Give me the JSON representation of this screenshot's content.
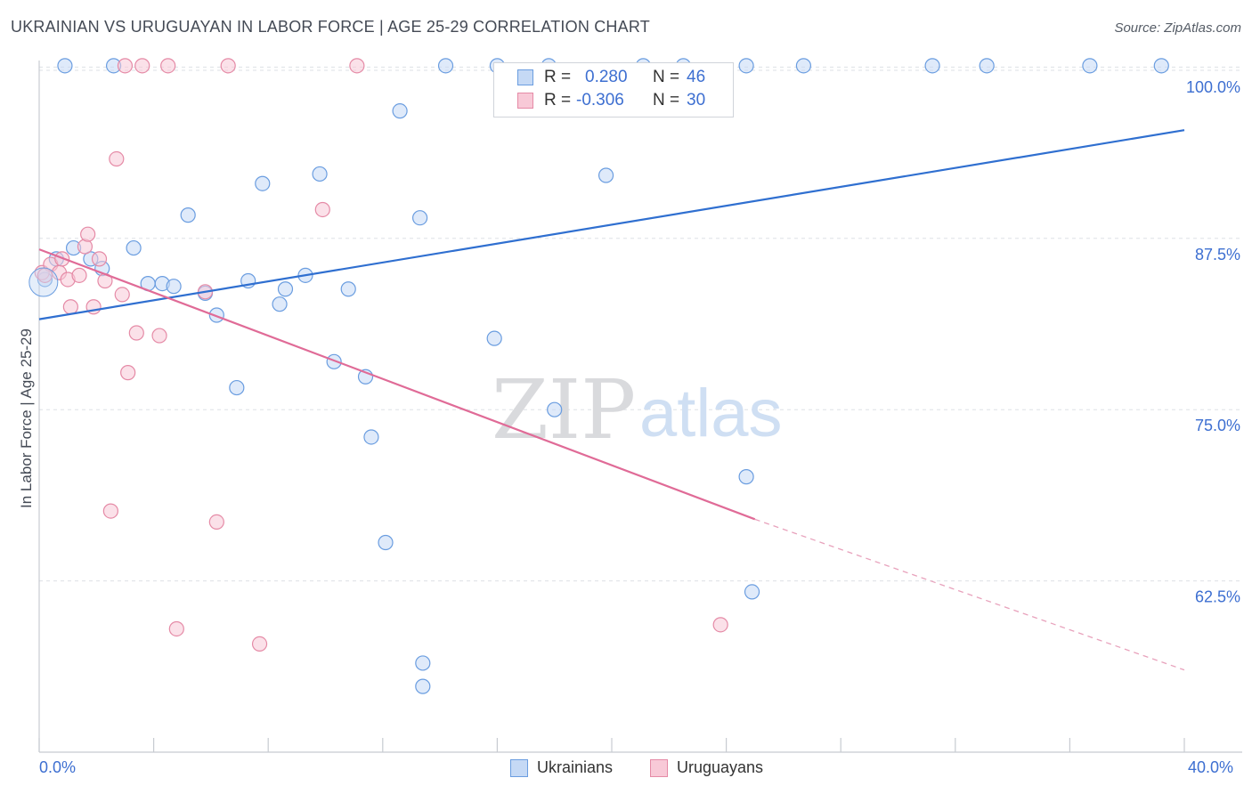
{
  "chart_data": {
    "type": "scatter",
    "title": "UKRAINIAN VS URUGUAYAN IN LABOR FORCE | AGE 25-29 CORRELATION CHART",
    "source": "Source: ZipAtlas.com",
    "ylabel": "In Labor Force | Age 25-29",
    "xlabel": "",
    "xlim": [
      0,
      40
    ],
    "ylim": [
      50,
      101
    ],
    "x_tick_labels": [
      "0.0%",
      "40.0%"
    ],
    "y_ticks": [
      62.5,
      75.0,
      87.5,
      100.0
    ],
    "y_tick_labels": [
      "62.5%",
      "75.0%",
      "87.5%",
      "100.0%"
    ],
    "grid": true,
    "watermark": "ZIPatlas",
    "legend": {
      "position": "top-center",
      "rows": [
        {
          "r_label": "R =",
          "r_value": "0.280",
          "n_label": "N =",
          "n_value": "46"
        },
        {
          "r_label": "R =",
          "r_value": "-0.306",
          "n_label": "N =",
          "n_value": "30"
        }
      ]
    },
    "series": [
      {
        "name": "Ukrainians",
        "color": "#6a9de0",
        "fill": "#c5d9f5",
        "trend": {
          "x": [
            0,
            40
          ],
          "y": [
            81.6,
            95.4
          ]
        },
        "points": [
          {
            "x": 0.2,
            "y": 84.5
          },
          {
            "x": 0.6,
            "y": 86.0
          },
          {
            "x": 1.2,
            "y": 86.8
          },
          {
            "x": 1.8,
            "y": 86.0
          },
          {
            "x": 2.2,
            "y": 85.3
          },
          {
            "x": 3.3,
            "y": 86.8
          },
          {
            "x": 3.8,
            "y": 84.2
          },
          {
            "x": 4.3,
            "y": 84.2
          },
          {
            "x": 4.7,
            "y": 84.0
          },
          {
            "x": 5.2,
            "y": 89.2
          },
          {
            "x": 5.8,
            "y": 83.5
          },
          {
            "x": 6.2,
            "y": 81.9
          },
          {
            "x": 6.9,
            "y": 76.6
          },
          {
            "x": 7.3,
            "y": 84.4
          },
          {
            "x": 7.8,
            "y": 91.5
          },
          {
            "x": 8.4,
            "y": 82.7
          },
          {
            "x": 8.6,
            "y": 83.8
          },
          {
            "x": 9.3,
            "y": 84.8
          },
          {
            "x": 9.8,
            "y": 92.2
          },
          {
            "x": 10.3,
            "y": 78.5
          },
          {
            "x": 10.8,
            "y": 83.8
          },
          {
            "x": 11.4,
            "y": 77.4
          },
          {
            "x": 11.6,
            "y": 73.0
          },
          {
            "x": 12.1,
            "y": 65.3
          },
          {
            "x": 12.6,
            "y": 96.8
          },
          {
            "x": 13.3,
            "y": 89.0
          },
          {
            "x": 13.4,
            "y": 54.8
          },
          {
            "x": 13.4,
            "y": 56.5
          },
          {
            "x": 14.2,
            "y": 100.1
          },
          {
            "x": 15.9,
            "y": 80.2
          },
          {
            "x": 16.0,
            "y": 100.1
          },
          {
            "x": 18.0,
            "y": 75.0
          },
          {
            "x": 19.8,
            "y": 92.1
          },
          {
            "x": 24.7,
            "y": 70.1
          },
          {
            "x": 24.9,
            "y": 61.7
          },
          {
            "x": 31.2,
            "y": 100.1
          },
          {
            "x": 33.1,
            "y": 100.1
          },
          {
            "x": 36.7,
            "y": 100.1
          },
          {
            "x": 39.2,
            "y": 100.1
          },
          {
            "x": 22.5,
            "y": 100.1
          },
          {
            "x": 24.7,
            "y": 100.1
          },
          {
            "x": 21.1,
            "y": 100.1
          },
          {
            "x": 2.6,
            "y": 100.1
          },
          {
            "x": 0.9,
            "y": 100.1
          },
          {
            "x": 26.7,
            "y": 100.1
          },
          {
            "x": 17.8,
            "y": 100.1
          }
        ]
      },
      {
        "name": "Uruguayans",
        "color": "#e58aa6",
        "fill": "#f8c9d7",
        "trend": {
          "x": [
            0,
            25
          ],
          "y": [
            86.7,
            67.0
          ]
        },
        "trend_dashed": {
          "x": [
            25,
            40
          ],
          "y": [
            67.0,
            56.0
          ]
        },
        "points": [
          {
            "x": 0.1,
            "y": 85.0
          },
          {
            "x": 0.4,
            "y": 85.6
          },
          {
            "x": 0.7,
            "y": 85.0
          },
          {
            "x": 0.8,
            "y": 86.0
          },
          {
            "x": 1.0,
            "y": 84.5
          },
          {
            "x": 1.1,
            "y": 82.5
          },
          {
            "x": 1.4,
            "y": 84.8
          },
          {
            "x": 1.6,
            "y": 86.9
          },
          {
            "x": 1.7,
            "y": 87.8
          },
          {
            "x": 1.9,
            "y": 82.5
          },
          {
            "x": 2.1,
            "y": 86.0
          },
          {
            "x": 2.3,
            "y": 84.4
          },
          {
            "x": 2.5,
            "y": 67.6
          },
          {
            "x": 2.7,
            "y": 93.3
          },
          {
            "x": 2.9,
            "y": 83.4
          },
          {
            "x": 3.0,
            "y": 100.1
          },
          {
            "x": 3.1,
            "y": 77.7
          },
          {
            "x": 3.4,
            "y": 80.6
          },
          {
            "x": 3.6,
            "y": 100.1
          },
          {
            "x": 4.2,
            "y": 80.4
          },
          {
            "x": 4.5,
            "y": 100.1
          },
          {
            "x": 4.8,
            "y": 59.0
          },
          {
            "x": 5.8,
            "y": 83.6
          },
          {
            "x": 6.2,
            "y": 66.8
          },
          {
            "x": 6.6,
            "y": 100.1
          },
          {
            "x": 7.7,
            "y": 57.9
          },
          {
            "x": 9.9,
            "y": 89.6
          },
          {
            "x": 11.1,
            "y": 100.1
          },
          {
            "x": 23.8,
            "y": 59.3
          },
          {
            "x": 0.2,
            "y": 84.8
          }
        ]
      }
    ]
  }
}
